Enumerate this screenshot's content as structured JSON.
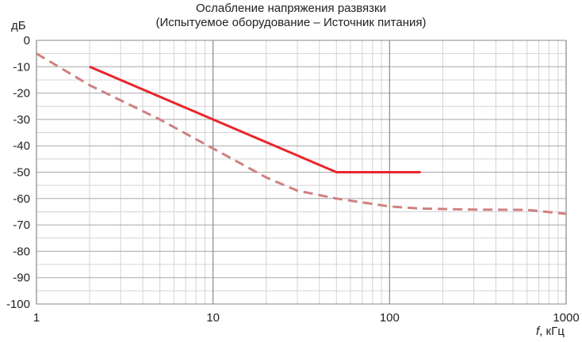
{
  "chart_data": {
    "type": "line",
    "title": "Ослабление напряжения развязки",
    "subtitle": "(Испытуемое оборудование – Источник питания)",
    "ylabel": "дБ",
    "xlabel_var": "f",
    "xlabel_unit": ", кГц",
    "xscale": "log",
    "xlim": [
      1,
      1000
    ],
    "ylim": [
      -100,
      0
    ],
    "x_ticks": [
      1,
      10,
      100,
      1000
    ],
    "x_tick_labels": [
      "1",
      "10",
      "100",
      "1000"
    ],
    "y_ticks": [
      0,
      -10,
      -20,
      -30,
      -40,
      -50,
      -60,
      -70,
      -80,
      -90,
      -100
    ],
    "grid": true,
    "series": [
      {
        "style": "solid",
        "color": "#e8262b",
        "points": [
          [
            2,
            -10
          ],
          [
            50,
            -50
          ],
          [
            150,
            -50
          ]
        ]
      },
      {
        "style": "dashed",
        "color": "#d08080",
        "points": [
          [
            1,
            -5
          ],
          [
            2,
            -17
          ],
          [
            5,
            -30
          ],
          [
            10,
            -41
          ],
          [
            20,
            -52
          ],
          [
            30,
            -57
          ],
          [
            50,
            -60
          ],
          [
            100,
            -63
          ],
          [
            150,
            -63.8
          ],
          [
            300,
            -64.2
          ],
          [
            600,
            -64.3
          ],
          [
            1000,
            -65.8
          ]
        ]
      }
    ]
  }
}
